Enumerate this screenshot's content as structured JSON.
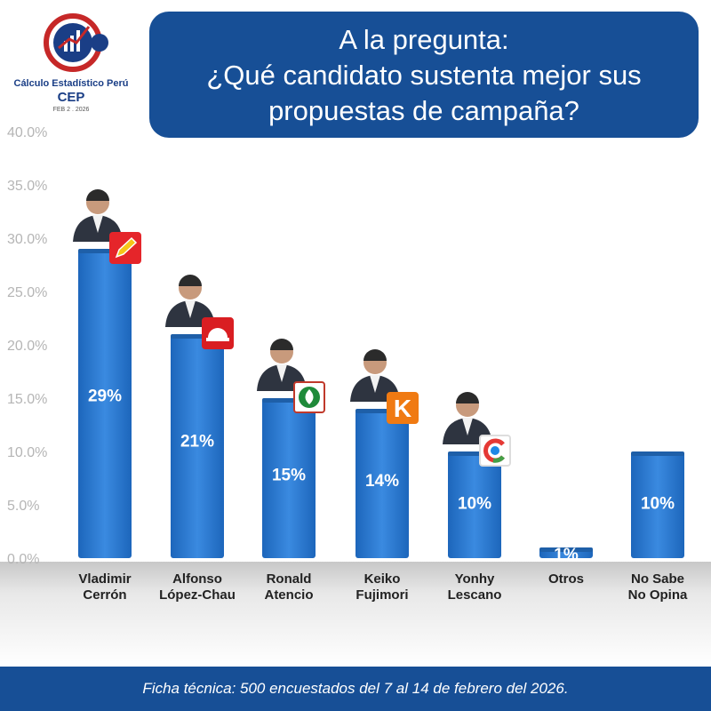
{
  "logo": {
    "brand_name": "Cálculo Estadístico Perú",
    "short_name": "CEP",
    "date": "FEB 2 . 2026"
  },
  "title": {
    "line1": "A la pregunta:",
    "line2": "¿Qué candidato sustenta mejor sus",
    "line3": "propuestas de campaña?"
  },
  "footer": "Ficha técnica: 500 encuestados  del 7  al 14 de febrero del 2026.",
  "colors": {
    "bar": "#2a78cc",
    "bar_top": "#1e5fa8",
    "header_blue": "#174f96",
    "tick_text": "#b5b5b5"
  },
  "chart_data": {
    "type": "bar",
    "categories": [
      [
        "Vladimir",
        "Cerrón"
      ],
      [
        "Alfonso",
        "López-Chau"
      ],
      [
        "Ronald",
        "Atencio"
      ],
      [
        "Keiko",
        "Fujimori"
      ],
      [
        "Yonhy",
        "Lescano"
      ],
      [
        "Otros"
      ],
      [
        "No Sabe",
        "No Opina"
      ]
    ],
    "values": [
      29,
      21,
      15,
      14,
      10,
      1,
      10
    ],
    "data_labels": [
      "29%",
      "21%",
      "15%",
      "14%",
      "10%",
      "1%",
      "10%"
    ],
    "party_icons": [
      "pencil-icon",
      "helmet-icon",
      "leaf-icon",
      "k-icon",
      "chakana-icon",
      null,
      null
    ],
    "has_candidate_photo": [
      true,
      true,
      true,
      true,
      true,
      false,
      false
    ],
    "yticks": [
      "0.0%",
      "5.0%",
      "10.0%",
      "15.0%",
      "20.0%",
      "25.0%",
      "30.0%",
      "35.0%",
      "40.0%"
    ],
    "ylim": [
      0,
      40
    ],
    "grid": false,
    "legend": "none"
  }
}
